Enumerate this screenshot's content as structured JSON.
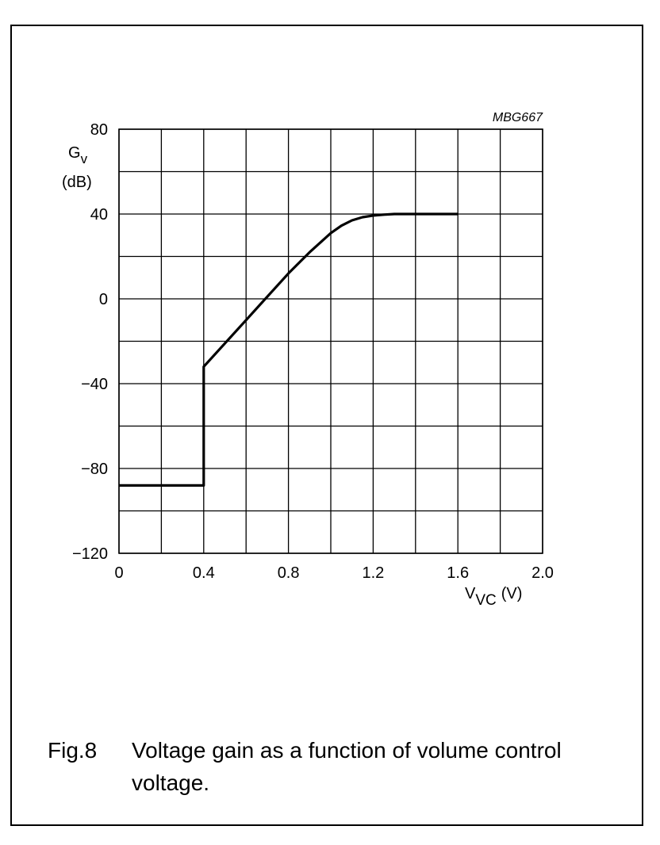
{
  "figure_code": "MBG667",
  "caption": {
    "label": "Fig.8",
    "text": "Voltage gain as a function of volume control voltage."
  },
  "chart_data": {
    "type": "line",
    "title": "",
    "xlabel": "V",
    "xlabel_subscript": "VC",
    "xlabel_unit": "(V)",
    "ylabel": "G",
    "ylabel_subscript": "v",
    "ylabel_unit": "(dB)",
    "xlim": [
      0,
      2.0
    ],
    "ylim": [
      -120,
      80
    ],
    "x_tick_labels": [
      "0",
      "0.4",
      "0.8",
      "1.2",
      "1.6",
      "2.0"
    ],
    "x_tick_values": [
      0,
      0.4,
      0.8,
      1.2,
      1.6,
      2.0
    ],
    "y_tick_labels": [
      "80",
      "40",
      "0",
      "−40",
      "−80",
      "−120"
    ],
    "y_tick_values": [
      80,
      40,
      0,
      -40,
      -80,
      -120
    ],
    "grid": true,
    "grid_x_step": 0.2,
    "grid_y_step": 20,
    "series": [
      {
        "x": [
          0,
          0.4,
          0.4,
          0.5,
          0.6,
          0.7,
          0.8,
          0.9,
          1.0,
          1.05,
          1.1,
          1.15,
          1.2,
          1.25,
          1.3,
          1.4,
          1.5,
          1.6
        ],
        "y": [
          -88,
          -88,
          -32,
          -21,
          -10,
          1,
          12,
          22,
          31,
          34.5,
          37,
          38.5,
          39.3,
          39.7,
          40,
          40,
          40,
          40
        ]
      }
    ]
  }
}
